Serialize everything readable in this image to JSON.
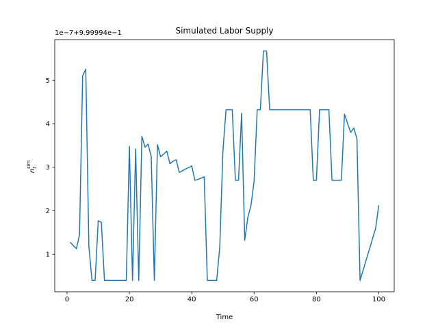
{
  "chart_data": {
    "type": "line",
    "title": "Simulated Labor Supply",
    "xlabel": "Time",
    "ylabel": {
      "base": "n",
      "subscript": "t",
      "superscript": "sim"
    },
    "y_offset_text": "1e−7+9.99994e−1",
    "x": [
      1,
      2,
      3,
      4,
      5,
      6,
      7,
      8,
      9,
      10,
      11,
      12,
      13,
      14,
      15,
      16,
      17,
      18,
      19,
      20,
      21,
      22,
      23,
      24,
      25,
      26,
      27,
      28,
      29,
      30,
      31,
      32,
      33,
      34,
      35,
      36,
      37,
      38,
      39,
      40,
      41,
      42,
      43,
      44,
      45,
      46,
      47,
      48,
      49,
      50,
      51,
      52,
      53,
      54,
      55,
      56,
      57,
      58,
      59,
      60,
      61,
      62,
      63,
      64,
      65,
      66,
      67,
      68,
      69,
      70,
      71,
      72,
      73,
      74,
      75,
      76,
      77,
      78,
      79,
      80,
      81,
      82,
      83,
      84,
      85,
      86,
      87,
      88,
      89,
      90,
      91,
      92,
      93,
      94,
      95,
      96,
      97,
      98,
      99,
      100
    ],
    "values": [
      1.28,
      1.2,
      1.13,
      1.45,
      5.1,
      5.25,
      1.18,
      0.4,
      0.4,
      1.77,
      1.74,
      0.4,
      0.4,
      0.4,
      0.4,
      0.4,
      0.4,
      0.4,
      0.4,
      3.48,
      0.4,
      3.42,
      0.4,
      3.71,
      3.46,
      3.53,
      3.24,
      0.4,
      3.52,
      3.24,
      3.3,
      3.37,
      3.08,
      3.14,
      3.17,
      2.88,
      2.92,
      2.96,
      2.99,
      3.03,
      2.7,
      2.72,
      2.75,
      2.78,
      0.4,
      0.4,
      0.4,
      0.4,
      1.18,
      3.37,
      4.32,
      4.32,
      4.32,
      2.7,
      2.7,
      4.24,
      1.32,
      1.85,
      2.12,
      2.68,
      4.32,
      4.32,
      5.67,
      5.67,
      4.32,
      4.32,
      4.32,
      4.32,
      4.32,
      4.32,
      4.32,
      4.32,
      4.32,
      4.32,
      4.32,
      4.32,
      4.32,
      4.32,
      2.7,
      2.7,
      4.32,
      4.32,
      4.32,
      4.32,
      2.7,
      2.7,
      2.7,
      2.7,
      4.22,
      4.0,
      3.8,
      3.9,
      3.65,
      0.4,
      0.64,
      0.88,
      1.12,
      1.36,
      1.6,
      2.13
    ],
    "color": "#1f77b4",
    "xlim": [
      -3.95,
      104.95
    ],
    "xticks": [
      0,
      20,
      40,
      60,
      80,
      100
    ],
    "ylim": [
      0.14,
      5.93
    ],
    "yticks": [
      1,
      2,
      3,
      4,
      5
    ]
  }
}
